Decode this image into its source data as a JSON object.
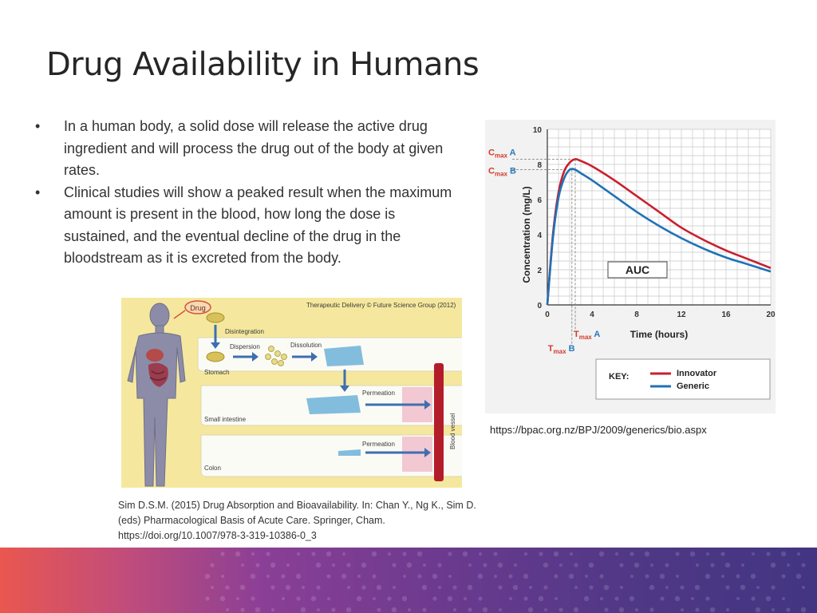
{
  "slide": {
    "title": "Drug Availability in Humans",
    "bullets": [
      "In a human body, a solid dose will release the active drug ingredient and will process the drug out of the body at given rates.",
      "Clinical studies will show a peaked result when the maximum amount is present in the blood, how long the dose is sustained, and the eventual decline of the drug in the bloodstream as it is excreted from the body."
    ],
    "bullet_symbol": "•",
    "citation_lines": [
      "Sim D.S.M. (2015) Drug Absorption and Bioavailability. In: Chan Y., Ng K., Sim D.",
      "(eds) Pharmacological Basis of Acute Care. Springer, Cham.",
      "https://doi.org/10.1007/978-3-319-10386-0_3"
    ],
    "graph_source_url": "https://bpac.org.nz/BPJ/2009/generics/bio.aspx"
  },
  "illustration": {
    "credit": "Therapeutic Delivery © Future Science Group (2012)",
    "labels": {
      "drug": "Drug",
      "disintegration": "Disintegration",
      "dispersion": "Dispersion",
      "dissolution": "Dissolution",
      "stomach": "Stomach",
      "permeation_1": "Permeation",
      "small_intestine": "Small intestine",
      "permeation_2": "Permeation",
      "colon": "Colon",
      "blood_vessel": "Blood vessel"
    }
  },
  "chart_data": {
    "type": "line",
    "xlabel": "Time (hours)",
    "ylabel": "Concentration (mg/L)",
    "xlim": [
      0,
      20
    ],
    "ylim": [
      0,
      10
    ],
    "xticks": [
      0,
      4,
      8,
      12,
      16,
      20
    ],
    "yticks": [
      0,
      2,
      4,
      6,
      8,
      10
    ],
    "grid": true,
    "series": [
      {
        "name": "Innovator",
        "color": "#c8202f",
        "x": [
          0,
          0.5,
          1,
          1.5,
          2,
          2.5,
          3,
          4,
          6,
          8,
          10,
          12,
          14,
          16,
          18,
          20
        ],
        "y": [
          0,
          4.0,
          6.4,
          7.6,
          8.1,
          8.3,
          8.2,
          7.9,
          7.1,
          6.2,
          5.3,
          4.4,
          3.7,
          3.1,
          2.6,
          2.1
        ]
      },
      {
        "name": "Generic",
        "color": "#1f72b8",
        "x": [
          0,
          0.5,
          1,
          1.5,
          2,
          2.5,
          3,
          4,
          6,
          8,
          10,
          12,
          14,
          16,
          18,
          20
        ],
        "y": [
          0,
          3.8,
          6.1,
          7.2,
          7.7,
          7.7,
          7.5,
          7.1,
          6.2,
          5.3,
          4.5,
          3.8,
          3.2,
          2.7,
          2.3,
          1.9
        ]
      }
    ],
    "annotations": {
      "auc": "AUC",
      "cmax_a": {
        "label": "C",
        "sub": "max",
        "suffix": " A",
        "y": 8.3
      },
      "cmax_b": {
        "label": "C",
        "sub": "max",
        "suffix": " B",
        "y": 7.7
      },
      "tmax_a": {
        "label": "T",
        "sub": "max",
        "suffix": " A",
        "x": 2.5
      },
      "tmax_b": {
        "label": "T",
        "sub": "max",
        "suffix": " B",
        "x": 2.2
      }
    },
    "legend": {
      "title": "KEY:",
      "position": "bottom-right"
    }
  }
}
